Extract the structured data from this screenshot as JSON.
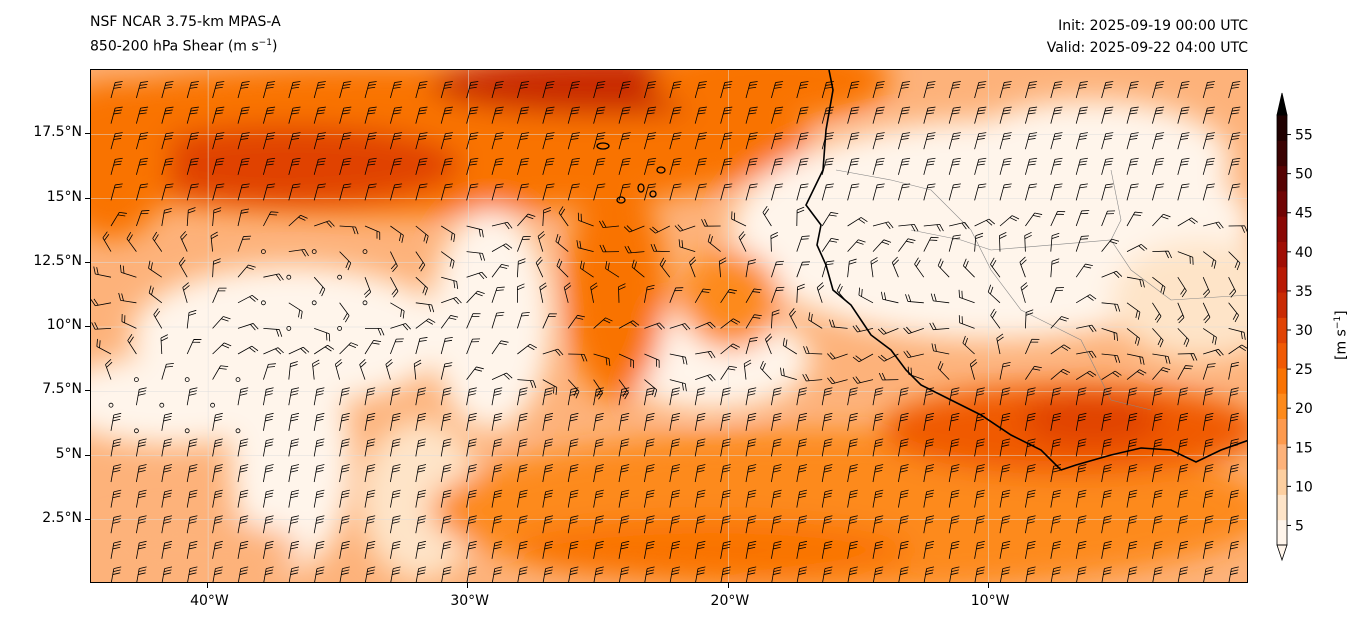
{
  "title": {
    "model": "NSF NCAR 3.75-km MPAS-A",
    "field": "850-200 hPa Shear (m s",
    "field_sup": "−1",
    "field_end": ")",
    "init": "Init: 2025-09-19 00:00 UTC",
    "valid": "Valid: 2025-09-22 04:00 UTC"
  },
  "axes": {
    "lat_labels": [
      "17.5°N",
      "15°N",
      "12.5°N",
      "10°N",
      "7.5°N",
      "5°N",
      "2.5°N"
    ],
    "lat_values": [
      17.5,
      15,
      12.5,
      10,
      7.5,
      5,
      2.5
    ],
    "lon_labels": [
      "40°W",
      "30°W",
      "20°W",
      "10°W"
    ],
    "lon_values": [
      -40,
      -30,
      -20,
      -10
    ],
    "lon_range": [
      -44.5,
      0
    ],
    "lat_range": [
      0,
      20
    ]
  },
  "colorbar": {
    "label": "[m s",
    "label_sup": "−1",
    "label_end": "]",
    "ticks": [
      "5",
      "10",
      "15",
      "20",
      "25",
      "30",
      "35",
      "40",
      "45",
      "50",
      "55"
    ],
    "tick_values": [
      5,
      10,
      15,
      20,
      25,
      30,
      35,
      40,
      45,
      50,
      55
    ],
    "range": [
      2.5,
      57.5
    ],
    "colors": [
      "#fff5eb",
      "#fee4c8",
      "#fdcfa0",
      "#fdb27a",
      "#fd9a4e",
      "#fd8a1c",
      "#f97304",
      "#f05a05",
      "#e04305",
      "#c92b05",
      "#b81a05",
      "#a00e05",
      "#8a0805",
      "#700404",
      "#560303",
      "#3a0202",
      "#200101",
      "#000000"
    ]
  }
}
